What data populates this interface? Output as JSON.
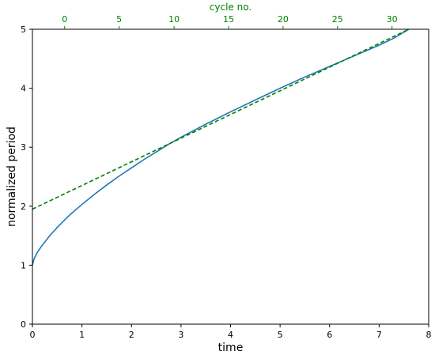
{
  "chart_data": {
    "type": "line",
    "title": "",
    "xlabel": "time",
    "ylabel": "normalized period",
    "xlim": [
      0,
      8
    ],
    "ylim": [
      0,
      5
    ],
    "xticks": [
      "0",
      "1",
      "2",
      "3",
      "4",
      "5",
      "6",
      "7",
      "8"
    ],
    "yticks": [
      "0",
      "1",
      "2",
      "3",
      "4",
      "5"
    ],
    "grid": false,
    "top_axis": {
      "label": "cycle no.",
      "color": "#008000",
      "ticks": [
        {
          "label": "0",
          "x": 0.65
        },
        {
          "label": "5",
          "x": 1.75
        },
        {
          "label": "10",
          "x": 2.86
        },
        {
          "label": "15",
          "x": 3.96
        },
        {
          "label": "20",
          "x": 5.06
        },
        {
          "label": "25",
          "x": 6.16
        },
        {
          "label": "30",
          "x": 7.26
        }
      ]
    },
    "series": [
      {
        "style": "solid",
        "color": "#1f77b4",
        "x": [
          0,
          0.03,
          0.1,
          0.2,
          0.35,
          0.5,
          0.75,
          1.0,
          1.25,
          1.5,
          1.75,
          2.0,
          2.25,
          2.5,
          2.75,
          3.0,
          3.5,
          4.0,
          4.5,
          5.0,
          5.5,
          6.0,
          6.5,
          7.0,
          7.3,
          7.6
        ],
        "y": [
          1.0,
          1.1,
          1.22,
          1.34,
          1.5,
          1.64,
          1.85,
          2.03,
          2.2,
          2.36,
          2.51,
          2.65,
          2.79,
          2.92,
          3.05,
          3.17,
          3.39,
          3.6,
          3.8,
          4.0,
          4.19,
          4.37,
          4.55,
          4.73,
          4.85,
          5.0
        ]
      },
      {
        "style": "dashed",
        "color": "#008000",
        "x": [
          0,
          7.6
        ],
        "y": [
          1.95,
          5.0
        ]
      }
    ]
  }
}
